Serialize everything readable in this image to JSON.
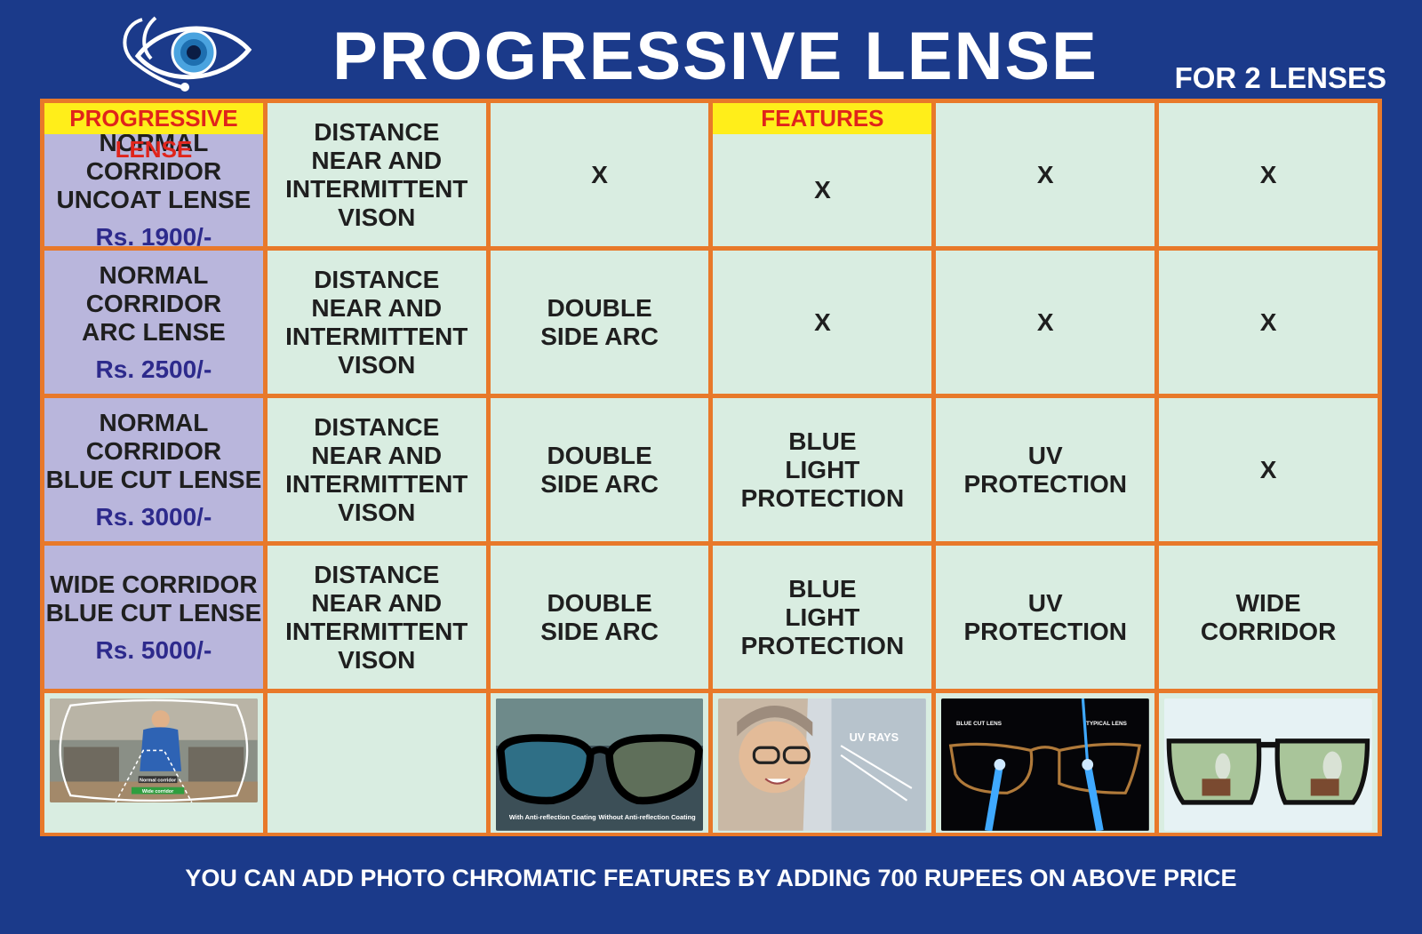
{
  "header": {
    "title": "PROGRESSIVE LENSE",
    "subtitle": "FOR 2 LENSES"
  },
  "table": {
    "tags": {
      "first_column": "PROGRESSIVE LENSE",
      "features": "FEATURES"
    },
    "rows": [
      {
        "name": "NORMAL CORRIDOR\nUNCOAT LENSE",
        "price": "Rs. 1900/-",
        "vision": "DISTANCE\nNEAR AND\nINTERMITTENT\nVISON",
        "arc": "X",
        "blue": "X",
        "uv": "X",
        "corridor": "X"
      },
      {
        "name": "NORMAL CORRIDOR\nARC LENSE",
        "price": "Rs. 2500/-",
        "vision": "DISTANCE\nNEAR AND\nINTERMITTENT\nVISON",
        "arc": "DOUBLE\nSIDE ARC",
        "blue": "X",
        "uv": "X",
        "corridor": "X"
      },
      {
        "name": "NORMAL CORRIDOR\nBLUE CUT LENSE",
        "price": "Rs. 3000/-",
        "vision": "DISTANCE\nNEAR AND\nINTERMITTENT\nVISON",
        "arc": "DOUBLE\nSIDE ARC",
        "blue": "BLUE\nLIGHT\nPROTECTION",
        "uv": "UV\nPROTECTION",
        "corridor": "X"
      },
      {
        "name": "WIDE CORRIDOR\nBLUE CUT LENSE",
        "price": "Rs. 5000/-",
        "vision": "DISTANCE\nNEAR AND\nINTERMITTENT\nVISON",
        "arc": "DOUBLE\nSIDE ARC",
        "blue": "BLUE\nLIGHT\nPROTECTION",
        "uv": "UV\nPROTECTION",
        "corridor": "WIDE\nCORRIDOR"
      }
    ],
    "images": {
      "corridor_labels": [
        "Normal corridor",
        "Wide corridor"
      ],
      "arc_labels": [
        "With Anti-reflection Coating",
        "Without Anti-reflection Coating"
      ],
      "uv_label": "UV RAYS",
      "blue_labels": [
        "BLUE CUT LENS",
        "TYPICAL LENS"
      ]
    }
  },
  "footer": {
    "note": "YOU CAN ADD PHOTO CHROMATIC FEATURES BY ADDING 700 RUPEES ON ABOVE PRICE"
  },
  "colors": {
    "background": "#1b3a8a",
    "grid_border": "#e8792a",
    "cell_bg": "#d9ede1",
    "name_cell_bg": "#b9b6dc",
    "tag_bg": "#ffee1a",
    "tag_text": "#e0241b",
    "price_text": "#2d2a8c"
  }
}
